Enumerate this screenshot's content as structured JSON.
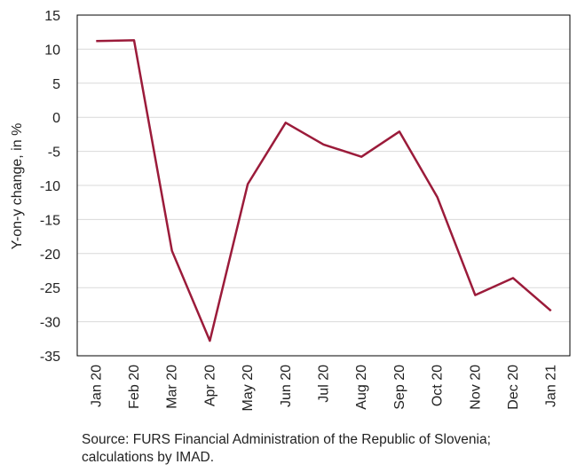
{
  "chart_data": {
    "type": "line",
    "categories": [
      "Jan 20",
      "Feb 20",
      "Mar 20",
      "Apr 20",
      "May 20",
      "Jun 20",
      "Jul 20",
      "Aug 20",
      "Sep 20",
      "Oct 20",
      "Nov 20",
      "Dec 20",
      "Jan 21"
    ],
    "series": [
      {
        "values": [
          11.2,
          11.3,
          -19.6,
          -32.8,
          -9.8,
          -0.8,
          -4.0,
          -5.8,
          -2.1,
          -11.7,
          -26.1,
          -23.6,
          -28.4
        ],
        "color": "#9b1b3a"
      }
    ],
    "ylabel": "Y-on-y change, in %",
    "xlabel": "",
    "ylim": [
      -35,
      15
    ],
    "yticks": [
      15,
      10,
      5,
      0,
      -5,
      -10,
      -15,
      -20,
      -25,
      -30,
      -35
    ],
    "grid": true,
    "legend": "none"
  },
  "source_note": "Source: FURS Financial Administration of the Republic of Slovenia; calculations by IMAD.",
  "colors": {
    "line": "#9b1b3a",
    "grid": "#d9d9d9",
    "axis": "#000000"
  }
}
